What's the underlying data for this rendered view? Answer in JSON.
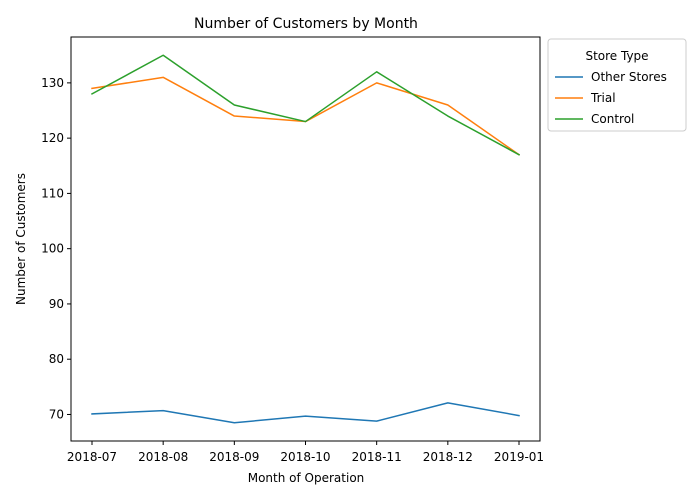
{
  "chart_data": {
    "type": "line",
    "title": "Number of Customers by Month",
    "xlabel": "Month of Operation",
    "ylabel": "Number of Customers",
    "categories": [
      "2018-07",
      "2018-08",
      "2018-09",
      "2018-10",
      "2018-11",
      "2018-12",
      "2019-01"
    ],
    "ylim": [
      65.2,
      138.3
    ],
    "yticks": [
      70,
      80,
      90,
      100,
      110,
      120,
      130
    ],
    "grid": false,
    "legend": {
      "title": "Store Type",
      "placement": "outside-top-right"
    },
    "series": [
      {
        "name": "Other Stores",
        "color": "#1f77b4",
        "values": [
          70.1,
          70.7,
          68.5,
          69.7,
          68.8,
          72.1,
          69.8
        ]
      },
      {
        "name": "Trial",
        "color": "#ff7f0e",
        "values": [
          129,
          131,
          124,
          123,
          130,
          126,
          117
        ]
      },
      {
        "name": "Control",
        "color": "#2ca02c",
        "values": [
          128,
          135,
          126,
          123,
          132,
          124,
          117
        ]
      }
    ]
  }
}
